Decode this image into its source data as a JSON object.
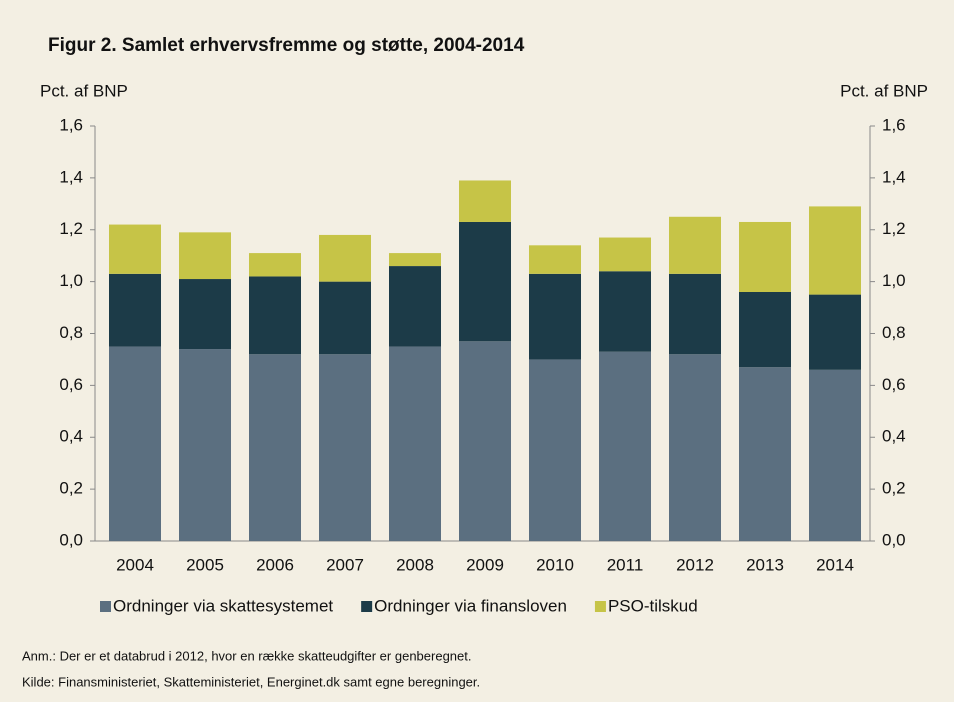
{
  "chart_data": {
    "type": "stacked-bar",
    "title": "Figur 2. Samlet erhvervsfremme og støtte, 2004-2014",
    "y_label": "Pct. af BNP",
    "y2_label": "Pct. af BNP",
    "categories": [
      "2004",
      "2005",
      "2006",
      "2007",
      "2008",
      "2009",
      "2010",
      "2011",
      "2012",
      "2013",
      "2014"
    ],
    "series": [
      {
        "name": "Ordninger via skattesystemet",
        "color": "#5b6f80",
        "values": [
          0.75,
          0.74,
          0.72,
          0.72,
          0.75,
          0.77,
          0.7,
          0.73,
          0.72,
          0.67,
          0.66
        ]
      },
      {
        "name": "Ordninger via finansloven",
        "color": "#1c3b48",
        "values": [
          0.28,
          0.27,
          0.3,
          0.28,
          0.31,
          0.46,
          0.33,
          0.31,
          0.31,
          0.29,
          0.29
        ]
      },
      {
        "name": "PSO-tilskud",
        "color": "#c6c447",
        "values": [
          0.19,
          0.18,
          0.09,
          0.18,
          0.05,
          0.16,
          0.11,
          0.13,
          0.22,
          0.27,
          0.34
        ]
      }
    ],
    "ylim": [
      0,
      1.6
    ],
    "yticks": [
      {
        "value": 0,
        "label": "0,0"
      },
      {
        "value": 0.2,
        "label": "0,2"
      },
      {
        "value": 0.4,
        "label": "0,4"
      },
      {
        "value": 0.6,
        "label": "0,6"
      },
      {
        "value": 0.8,
        "label": "0,8"
      },
      {
        "value": 1.0,
        "label": "1,0"
      },
      {
        "value": 1.2,
        "label": "1,2"
      },
      {
        "value": 1.4,
        "label": "1,4"
      },
      {
        "value": 1.6,
        "label": "1,6"
      }
    ],
    "y2lim": [
      0,
      1.6
    ],
    "y2ticks": [
      {
        "value": 0,
        "label": "0,0"
      },
      {
        "value": 0.2,
        "label": "0,2"
      },
      {
        "value": 0.4,
        "label": "0,4"
      },
      {
        "value": 0.6,
        "label": "0,6"
      },
      {
        "value": 0.8,
        "label": "0,8"
      },
      {
        "value": 1.0,
        "label": "1,0"
      },
      {
        "value": 1.2,
        "label": "1,2"
      },
      {
        "value": 1.4,
        "label": "1,4"
      },
      {
        "value": 1.6,
        "label": "1,6"
      }
    ],
    "grid": false,
    "notes": [
      "Anm.: Der er et databrud i 2012, hvor en række skatteudgifter er genberegnet.",
      "Kilde: Finansministeriet, Skatteministeriet, Energinet.dk samt egne beregninger."
    ]
  }
}
